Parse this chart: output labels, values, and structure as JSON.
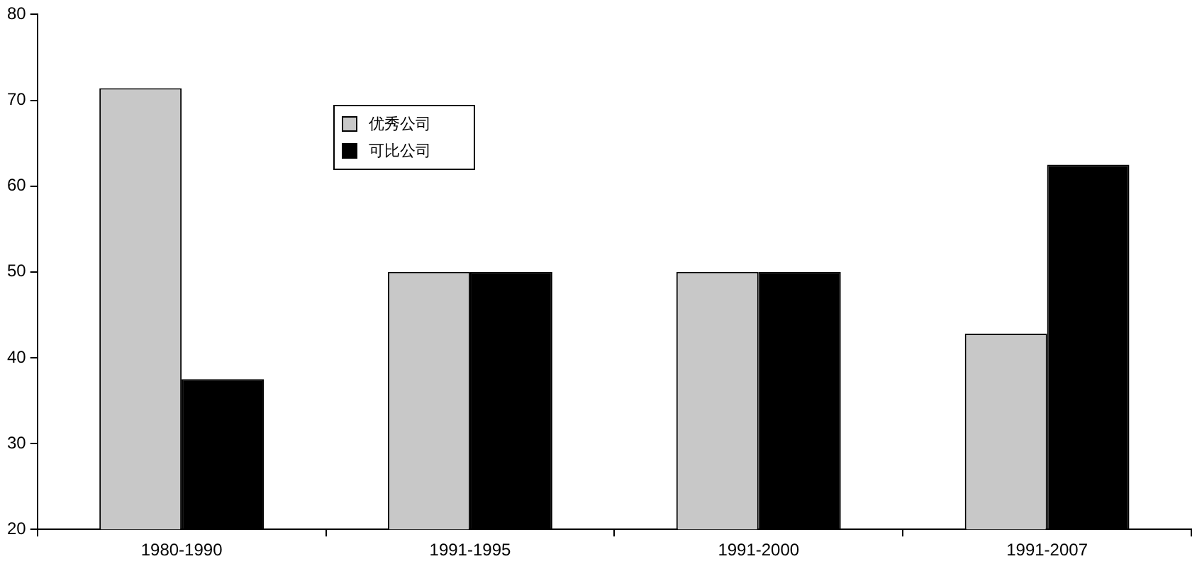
{
  "chart_data": {
    "type": "bar",
    "categories": [
      "1980-1990",
      "1991-1995",
      "1991-2000",
      "1991-2007"
    ],
    "series": [
      {
        "name": "优秀公司",
        "color": "#c8c8c8",
        "values": [
          71.4,
          50,
          50,
          42.8
        ]
      },
      {
        "name": "可比公司",
        "color": "#000000",
        "values": [
          37.5,
          50,
          50,
          62.5
        ]
      }
    ],
    "ylim": [
      20,
      80
    ],
    "yticks": [
      20,
      30,
      40,
      50,
      60,
      70,
      80
    ],
    "grid": false,
    "legend": "top left"
  }
}
